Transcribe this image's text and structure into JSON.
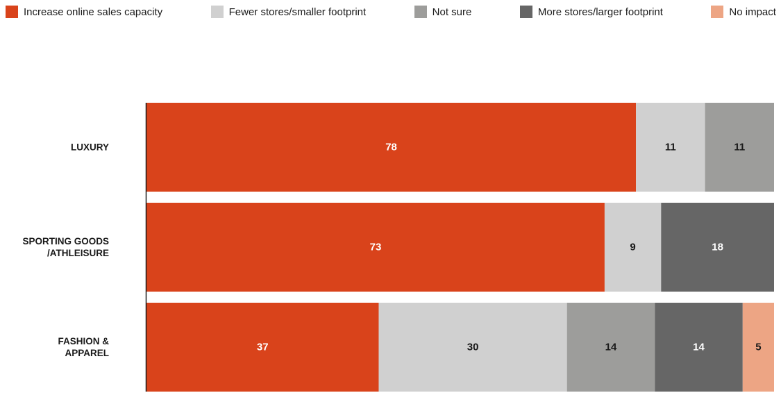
{
  "chart_data": {
    "type": "bar",
    "orientation": "horizontal",
    "stacked": true,
    "xlim": [
      0,
      100
    ],
    "legend_position": "top",
    "categories": [
      [
        "LUXURY"
      ],
      [
        "SPORTING GOODS",
        "/ATHLEISURE"
      ],
      [
        "FASHION &",
        "APPAREL"
      ]
    ],
    "series": [
      {
        "name": "Increase online sales capacity",
        "color": "#d9431b",
        "text_color": "#ffffff",
        "values": [
          78,
          73,
          37
        ]
      },
      {
        "name": "Fewer stores/smaller footprint",
        "color": "#d0d0d0",
        "text_color": "#1a1a1a",
        "values": [
          11,
          9,
          30
        ]
      },
      {
        "name": "Not sure",
        "color": "#9d9d9b",
        "text_color": "#1a1a1a",
        "values": [
          11,
          0,
          14
        ]
      },
      {
        "name": "More stores/larger footprint",
        "color": "#666666",
        "text_color": "#ffffff",
        "values": [
          0,
          18,
          14
        ]
      },
      {
        "name": "No impact",
        "color": "#eda584",
        "text_color": "#1a1a1a",
        "values": [
          0,
          0,
          5
        ]
      }
    ]
  }
}
